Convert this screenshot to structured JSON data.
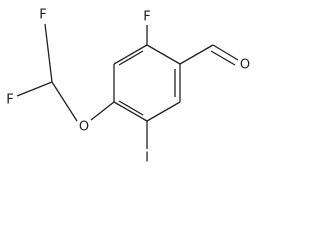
{
  "atoms": [
    "F",
    "O",
    "F",
    "F",
    "O",
    "I"
  ]
}
